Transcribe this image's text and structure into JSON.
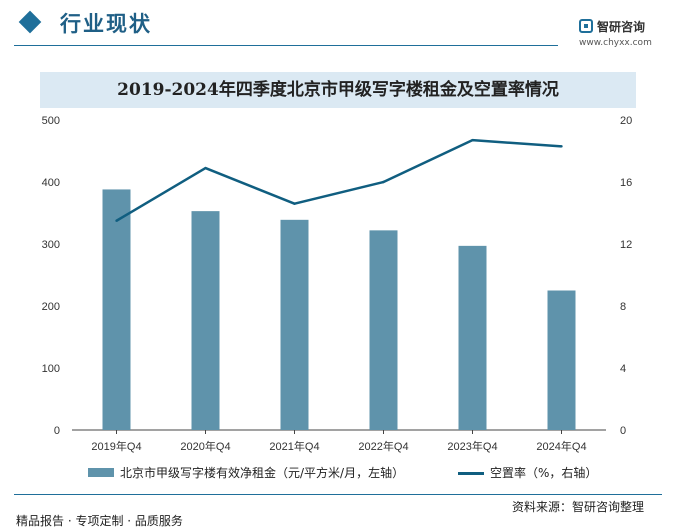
{
  "header": {
    "section_title": "行业现状",
    "brand_name": "智研咨询",
    "brand_url": "www.chyxx.com"
  },
  "chart_data": {
    "type": "bar",
    "title": "2019-2024年四季度北京市甲级写字楼租金及空置率情况",
    "categories": [
      "2019年Q4",
      "2020年Q4",
      "2021年Q4",
      "2022年Q4",
      "2023年Q4",
      "2024年Q4"
    ],
    "series": [
      {
        "name": "北京市甲级写字楼有效净租金（元/平方米/月，左轴）",
        "type": "bar",
        "axis": "left",
        "values": [
          388,
          353,
          339,
          322,
          297,
          225
        ],
        "color": "#5f93ab"
      },
      {
        "name": "空置率（%，右轴）",
        "type": "line",
        "axis": "right",
        "values": [
          13.5,
          16.9,
          14.6,
          16.0,
          18.7,
          18.3
        ],
        "color": "#105e80"
      }
    ],
    "ylim_left": [
      0,
      500
    ],
    "yticks_left": [
      0,
      100,
      200,
      300,
      400,
      500
    ],
    "ylim_right": [
      0,
      20
    ],
    "yticks_right": [
      0,
      4,
      8,
      12,
      16,
      20
    ],
    "grid": false,
    "legend_position": "bottom"
  },
  "footer": {
    "left_text": "精品报告 · 专项定制 · 品质服务",
    "source": "资料来源：智研咨询整理"
  }
}
